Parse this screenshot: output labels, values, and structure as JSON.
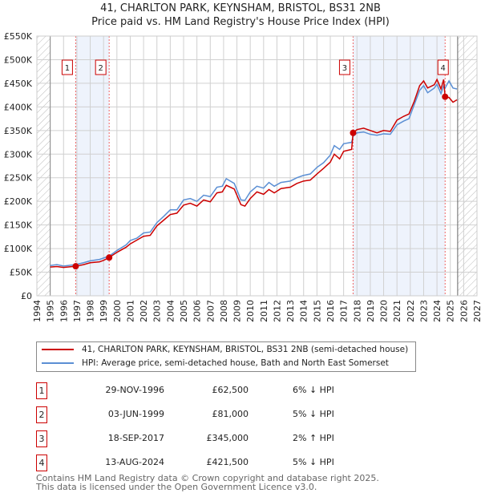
{
  "chart_data": {
    "type": "line",
    "title": "41, CHARLTON PARK, KEYNSHAM, BRISTOL, BS31 2NB",
    "subtitle": "Price paid vs. HM Land Registry's House Price Index (HPI)",
    "xlim": [
      1994,
      2027
    ],
    "ylim": [
      0,
      550000
    ],
    "x_ticks": [
      "1994",
      "1995",
      "1996",
      "1997",
      "1998",
      "1999",
      "2000",
      "2001",
      "2002",
      "2003",
      "2004",
      "2005",
      "2006",
      "2007",
      "2008",
      "2009",
      "2010",
      "2011",
      "2012",
      "2013",
      "2014",
      "2015",
      "2016",
      "2017",
      "2018",
      "2019",
      "2020",
      "2021",
      "2022",
      "2023",
      "2024",
      "2025",
      "2026",
      "2027"
    ],
    "y_ticks": [
      {
        "v": 0,
        "label": "£0"
      },
      {
        "v": 50000,
        "label": "£50K"
      },
      {
        "v": 100000,
        "label": "£100K"
      },
      {
        "v": 150000,
        "label": "£150K"
      },
      {
        "v": 200000,
        "label": "£200K"
      },
      {
        "v": 250000,
        "label": "£250K"
      },
      {
        "v": 300000,
        "label": "£300K"
      },
      {
        "v": 350000,
        "label": "£350K"
      },
      {
        "v": 400000,
        "label": "£400K"
      },
      {
        "v": 450000,
        "label": "£450K"
      },
      {
        "v": 500000,
        "label": "£500K"
      },
      {
        "v": 550000,
        "label": "£550K"
      }
    ],
    "grid": true,
    "data_end": 2025.55,
    "shaded_ranges": [
      [
        1996.91,
        1999.42
      ],
      [
        2017.71,
        2024.61
      ]
    ],
    "series": [
      {
        "name": "41, CHARLTON PARK, KEYNSHAM, BRISTOL, BS31 2NB (semi-detached house)",
        "color": "#cc0000",
        "points": [
          [
            1995,
            61000
          ],
          [
            1995.5,
            62000
          ],
          [
            1996,
            60000
          ],
          [
            1996.91,
            62500
          ],
          [
            1997.5,
            66000
          ],
          [
            1998,
            70000
          ],
          [
            1998.7,
            72000
          ],
          [
            1999,
            75000
          ],
          [
            1999.42,
            81000
          ],
          [
            2000,
            92000
          ],
          [
            2000.7,
            103000
          ],
          [
            2001,
            110000
          ],
          [
            2001.5,
            118000
          ],
          [
            2002,
            126000
          ],
          [
            2002.5,
            128000
          ],
          [
            2003,
            148000
          ],
          [
            2003.5,
            160000
          ],
          [
            2004,
            172000
          ],
          [
            2004.5,
            175000
          ],
          [
            2005,
            192000
          ],
          [
            2005.5,
            196000
          ],
          [
            2006,
            190000
          ],
          [
            2006.5,
            203000
          ],
          [
            2007,
            199000
          ],
          [
            2007.5,
            218000
          ],
          [
            2007.9,
            220000
          ],
          [
            2008.2,
            234000
          ],
          [
            2008.8,
            226000
          ],
          [
            2009.3,
            193000
          ],
          [
            2009.6,
            190000
          ],
          [
            2010,
            206000
          ],
          [
            2010.5,
            220000
          ],
          [
            2011,
            215000
          ],
          [
            2011.4,
            225000
          ],
          [
            2011.8,
            218000
          ],
          [
            2012.3,
            227000
          ],
          [
            2013,
            230000
          ],
          [
            2013.5,
            238000
          ],
          [
            2014,
            243000
          ],
          [
            2014.5,
            245000
          ],
          [
            2015,
            258000
          ],
          [
            2015.5,
            270000
          ],
          [
            2016,
            283000
          ],
          [
            2016.3,
            300000
          ],
          [
            2016.7,
            290000
          ],
          [
            2017,
            306000
          ],
          [
            2017.6,
            310000
          ],
          [
            2017.71,
            345000
          ],
          [
            2018,
            352000
          ],
          [
            2018.5,
            355000
          ],
          [
            2019,
            350000
          ],
          [
            2019.5,
            345000
          ],
          [
            2020,
            350000
          ],
          [
            2020.5,
            348000
          ],
          [
            2021,
            372000
          ],
          [
            2021.5,
            380000
          ],
          [
            2021.9,
            385000
          ],
          [
            2022.3,
            412000
          ],
          [
            2022.7,
            445000
          ],
          [
            2023,
            455000
          ],
          [
            2023.3,
            440000
          ],
          [
            2023.8,
            447000
          ],
          [
            2024,
            458000
          ],
          [
            2024.3,
            438000
          ],
          [
            2024.5,
            458000
          ],
          [
            2024.61,
            421500
          ],
          [
            2024.9,
            420000
          ],
          [
            2025.2,
            410000
          ],
          [
            2025.5,
            415000
          ]
        ]
      },
      {
        "name": "HPI: Average price, semi-detached house, Bath and North East Somerset",
        "color": "#5b8fd4",
        "points": [
          [
            1995,
            64000
          ],
          [
            1995.5,
            66000
          ],
          [
            1996,
            63000
          ],
          [
            1996.91,
            66000
          ],
          [
            1997.5,
            70000
          ],
          [
            1998,
            74000
          ],
          [
            1998.7,
            77000
          ],
          [
            1999,
            80000
          ],
          [
            1999.42,
            84000
          ],
          [
            2000,
            96000
          ],
          [
            2000.7,
            108000
          ],
          [
            2001,
            117000
          ],
          [
            2001.5,
            122000
          ],
          [
            2002,
            133000
          ],
          [
            2002.5,
            135000
          ],
          [
            2003,
            155000
          ],
          [
            2003.5,
            168000
          ],
          [
            2004,
            182000
          ],
          [
            2004.5,
            182000
          ],
          [
            2005,
            203000
          ],
          [
            2005.5,
            206000
          ],
          [
            2006,
            200000
          ],
          [
            2006.5,
            213000
          ],
          [
            2007,
            210000
          ],
          [
            2007.5,
            230000
          ],
          [
            2007.9,
            232000
          ],
          [
            2008.2,
            248000
          ],
          [
            2008.8,
            238000
          ],
          [
            2009.3,
            203000
          ],
          [
            2009.6,
            202000
          ],
          [
            2010,
            220000
          ],
          [
            2010.5,
            232000
          ],
          [
            2011,
            228000
          ],
          [
            2011.4,
            240000
          ],
          [
            2011.8,
            232000
          ],
          [
            2012.3,
            240000
          ],
          [
            2013,
            243000
          ],
          [
            2013.5,
            250000
          ],
          [
            2014,
            255000
          ],
          [
            2014.5,
            258000
          ],
          [
            2015,
            272000
          ],
          [
            2015.5,
            282000
          ],
          [
            2016,
            298000
          ],
          [
            2016.3,
            318000
          ],
          [
            2016.7,
            310000
          ],
          [
            2017,
            322000
          ],
          [
            2017.6,
            325000
          ],
          [
            2017.71,
            338000
          ],
          [
            2018,
            345000
          ],
          [
            2018.5,
            347000
          ],
          [
            2019,
            342000
          ],
          [
            2019.5,
            340000
          ],
          [
            2020,
            343000
          ],
          [
            2020.5,
            342000
          ],
          [
            2021,
            362000
          ],
          [
            2021.5,
            370000
          ],
          [
            2021.9,
            375000
          ],
          [
            2022.3,
            405000
          ],
          [
            2022.7,
            435000
          ],
          [
            2023,
            445000
          ],
          [
            2023.3,
            430000
          ],
          [
            2023.8,
            440000
          ],
          [
            2024,
            448000
          ],
          [
            2024.3,
            428000
          ],
          [
            2024.5,
            445000
          ],
          [
            2024.61,
            440000
          ],
          [
            2024.9,
            455000
          ],
          [
            2025.2,
            440000
          ],
          [
            2025.5,
            438000
          ]
        ]
      }
    ],
    "sales": [
      {
        "n": "1",
        "x": 1996.91,
        "y": 62500
      },
      {
        "n": "2",
        "x": 1999.42,
        "y": 81000
      },
      {
        "n": "3",
        "x": 2017.71,
        "y": 345000
      },
      {
        "n": "4",
        "x": 2024.61,
        "y": 421500
      }
    ]
  },
  "title_line1": "41, CHARLTON PARK, KEYNSHAM, BRISTOL, BS31 2NB",
  "title_line2": "Price paid vs. HM Land Registry's House Price Index (HPI)",
  "legend": {
    "property": "41, CHARLTON PARK, KEYNSHAM, BRISTOL, BS31 2NB (semi-detached house)",
    "hpi": "HPI: Average price, semi-detached house, Bath and North East Somerset"
  },
  "transactions": [
    {
      "n": "1",
      "date": "29-NOV-1996",
      "price": "£62,500",
      "hpi": "6% ↓ HPI"
    },
    {
      "n": "2",
      "date": "03-JUN-1999",
      "price": "£81,000",
      "hpi": "5% ↓ HPI"
    },
    {
      "n": "3",
      "date": "18-SEP-2017",
      "price": "£345,000",
      "hpi": "2% ↑ HPI"
    },
    {
      "n": "4",
      "date": "13-AUG-2024",
      "price": "£421,500",
      "hpi": "5% ↓ HPI"
    }
  ],
  "footer": {
    "line1": "Contains HM Land Registry data © Crown copyright and database right 2025.",
    "line2": "This data is licensed under the Open Government Licence v3.0."
  }
}
